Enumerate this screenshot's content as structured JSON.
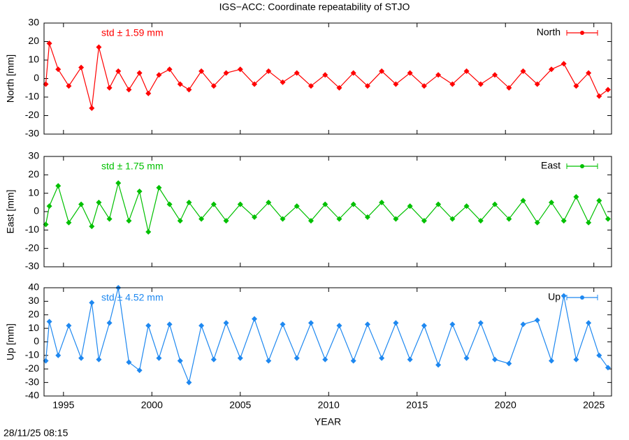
{
  "title": "IGS−ACC: Coordinate repeatability of STJO",
  "timestamp": "28/11/25 08:15",
  "chart_data": [
    {
      "type": "line",
      "ylabel": "North [mm]",
      "annotation": "std ± 1.59 mm",
      "xlim": [
        1993.9,
        2026.0
      ],
      "ylim": [
        -30,
        30
      ],
      "yticks": [
        -30,
        -20,
        -10,
        0,
        10,
        20,
        30
      ],
      "x": [
        1994.0,
        1994.2,
        1994.7,
        1995.3,
        1996.0,
        1996.6,
        1997.0,
        1997.6,
        1998.1,
        1998.7,
        1999.3,
        1999.8,
        2000.4,
        2001.0,
        2001.6,
        2002.1,
        2002.8,
        2003.5,
        2004.2,
        2005.0,
        2005.8,
        2006.6,
        2007.4,
        2008.2,
        2009.0,
        2009.8,
        2010.6,
        2011.4,
        2012.2,
        2013.0,
        2013.8,
        2014.6,
        2015.4,
        2016.2,
        2017.0,
        2017.8,
        2018.6,
        2019.4,
        2020.2,
        2021.0,
        2021.8,
        2022.6,
        2023.3,
        2024.0,
        2024.7,
        2025.3,
        2025.8
      ],
      "series": [
        {
          "name": "North",
          "color": "#ff0000",
          "values": [
            -3,
            19,
            5,
            -4,
            6,
            -16,
            17,
            -5,
            4,
            -6,
            3,
            -8,
            2,
            5,
            -3,
            -6,
            4,
            -4,
            3,
            5,
            -3,
            4,
            -2,
            3,
            -4,
            2,
            -5,
            3,
            -4,
            4,
            -3,
            3,
            -4,
            2,
            -3,
            4,
            -3,
            2,
            -5,
            4,
            -3,
            5,
            8,
            -4,
            3,
            -9.5,
            -6
          ]
        }
      ]
    },
    {
      "type": "line",
      "ylabel": "East [mm]",
      "annotation": "std ± 1.75 mm",
      "xlim": [
        1993.9,
        2026.0
      ],
      "ylim": [
        -30,
        30
      ],
      "yticks": [
        -30,
        -20,
        -10,
        0,
        10,
        20,
        30
      ],
      "x": [
        1994.0,
        1994.2,
        1994.7,
        1995.3,
        1996.0,
        1996.6,
        1997.0,
        1997.6,
        1998.1,
        1998.7,
        1999.3,
        1999.8,
        2000.4,
        2001.0,
        2001.6,
        2002.1,
        2002.8,
        2003.5,
        2004.2,
        2005.0,
        2005.8,
        2006.6,
        2007.4,
        2008.2,
        2009.0,
        2009.8,
        2010.6,
        2011.4,
        2012.2,
        2013.0,
        2013.8,
        2014.6,
        2015.4,
        2016.2,
        2017.0,
        2017.8,
        2018.6,
        2019.4,
        2020.2,
        2021.0,
        2021.8,
        2022.6,
        2023.3,
        2024.0,
        2024.7,
        2025.3,
        2025.8
      ],
      "series": [
        {
          "name": "East",
          "color": "#00c000",
          "values": [
            -7,
            3,
            14,
            -6,
            4,
            -8,
            5,
            -4,
            15.5,
            -5,
            11,
            -11,
            13,
            4,
            -5,
            5,
            -4,
            4,
            -5,
            4,
            -3,
            5,
            -4,
            3,
            -5,
            4,
            -4,
            4,
            -3,
            5,
            -4,
            3,
            -5,
            4,
            -4,
            3,
            -5,
            4,
            -4,
            6,
            -6,
            5,
            -5,
            8,
            -6,
            6,
            -4
          ]
        }
      ]
    },
    {
      "type": "line",
      "ylabel": "Up [mm]",
      "annotation": "std ± 4.52 mm",
      "xlabel": "YEAR",
      "xlim": [
        1993.9,
        2026.0
      ],
      "ylim": [
        -40,
        40
      ],
      "yticks": [
        -40,
        -30,
        -20,
        -10,
        0,
        10,
        20,
        30,
        40
      ],
      "xticks": [
        1995,
        2000,
        2005,
        2010,
        2015,
        2020,
        2025
      ],
      "x": [
        1994.0,
        1994.2,
        1994.7,
        1995.3,
        1996.0,
        1996.6,
        1997.0,
        1997.6,
        1998.1,
        1998.7,
        1999.3,
        1999.8,
        2000.4,
        2001.0,
        2001.6,
        2002.1,
        2002.8,
        2003.5,
        2004.2,
        2005.0,
        2005.8,
        2006.6,
        2007.4,
        2008.2,
        2009.0,
        2009.8,
        2010.6,
        2011.4,
        2012.2,
        2013.0,
        2013.8,
        2014.6,
        2015.4,
        2016.2,
        2017.0,
        2017.8,
        2018.6,
        2019.4,
        2020.2,
        2021.0,
        2021.8,
        2022.6,
        2023.3,
        2024.0,
        2024.7,
        2025.3,
        2025.8
      ],
      "series": [
        {
          "name": "Up",
          "color": "#1e88f0",
          "values": [
            -14,
            15,
            -10,
            12,
            -12,
            29,
            -13,
            14,
            40,
            -15,
            -21,
            12,
            -12,
            13,
            -14,
            -30,
            12,
            -13,
            14,
            -12,
            17,
            -14,
            13,
            -12,
            14,
            -13,
            12,
            -14,
            13,
            -12,
            14,
            -13,
            12,
            -17,
            13,
            -12,
            14,
            -13,
            -16,
            13,
            16,
            -14,
            34,
            -13,
            14,
            -10,
            -19
          ]
        }
      ]
    }
  ]
}
